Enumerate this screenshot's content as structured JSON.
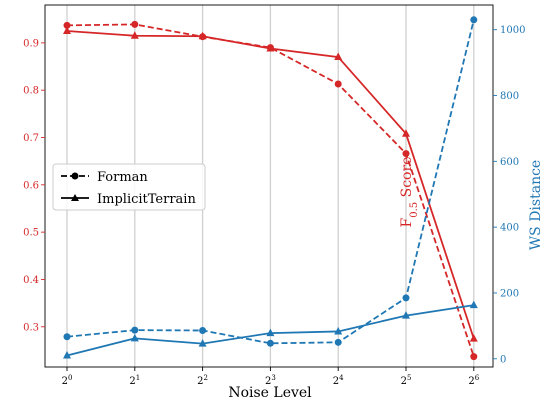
{
  "chart_data": {
    "type": "line",
    "xlabel": "Noise Level",
    "ylabel_left": "F0.5 Score",
    "ylabel_left_main": "F",
    "ylabel_left_sub": "0.5",
    "ylabel_left_rest": " Score",
    "ylabel_right": "WS Distance",
    "x_base": "2",
    "x_exponents": [
      "0",
      "1",
      "2",
      "3",
      "4",
      "5",
      "6"
    ],
    "left_ylim": [
      0.215,
      0.98
    ],
    "left_ticks": [
      0.3,
      0.4,
      0.5,
      0.6,
      0.7,
      0.8,
      0.9
    ],
    "right_ylim": [
      -25,
      1075
    ],
    "right_ticks": [
      0,
      200,
      400,
      600,
      800,
      1000
    ],
    "grid": "vertical",
    "legend_position": "center-left",
    "colors": {
      "f_score": "#d62728",
      "ws": "#1f77b4"
    },
    "series": [
      {
        "name": "Forman",
        "axis": "left",
        "metric": "f_score",
        "linestyle": "dashed",
        "marker": "circle",
        "values": [
          0.937,
          0.939,
          0.913,
          0.89,
          0.813,
          0.666,
          0.237
        ]
      },
      {
        "name": "ImplicitTerrain",
        "axis": "left",
        "metric": "f_score",
        "linestyle": "solid",
        "marker": "triangle",
        "values": [
          0.925,
          0.915,
          0.914,
          0.888,
          0.87,
          0.708,
          0.275
        ]
      },
      {
        "name": "Forman",
        "axis": "right",
        "metric": "ws",
        "linestyle": "dashed",
        "marker": "circle",
        "values": [
          67,
          87,
          86,
          47,
          50,
          185,
          1030
        ]
      },
      {
        "name": "ImplicitTerrain",
        "axis": "right",
        "metric": "ws",
        "linestyle": "solid",
        "marker": "triangle",
        "values": [
          10,
          62,
          46,
          78,
          83,
          131,
          163
        ]
      }
    ],
    "legend": [
      {
        "label": "Forman",
        "linestyle": "dashed",
        "marker": "circle"
      },
      {
        "label": "ImplicitTerrain",
        "linestyle": "solid",
        "marker": "triangle"
      }
    ]
  }
}
